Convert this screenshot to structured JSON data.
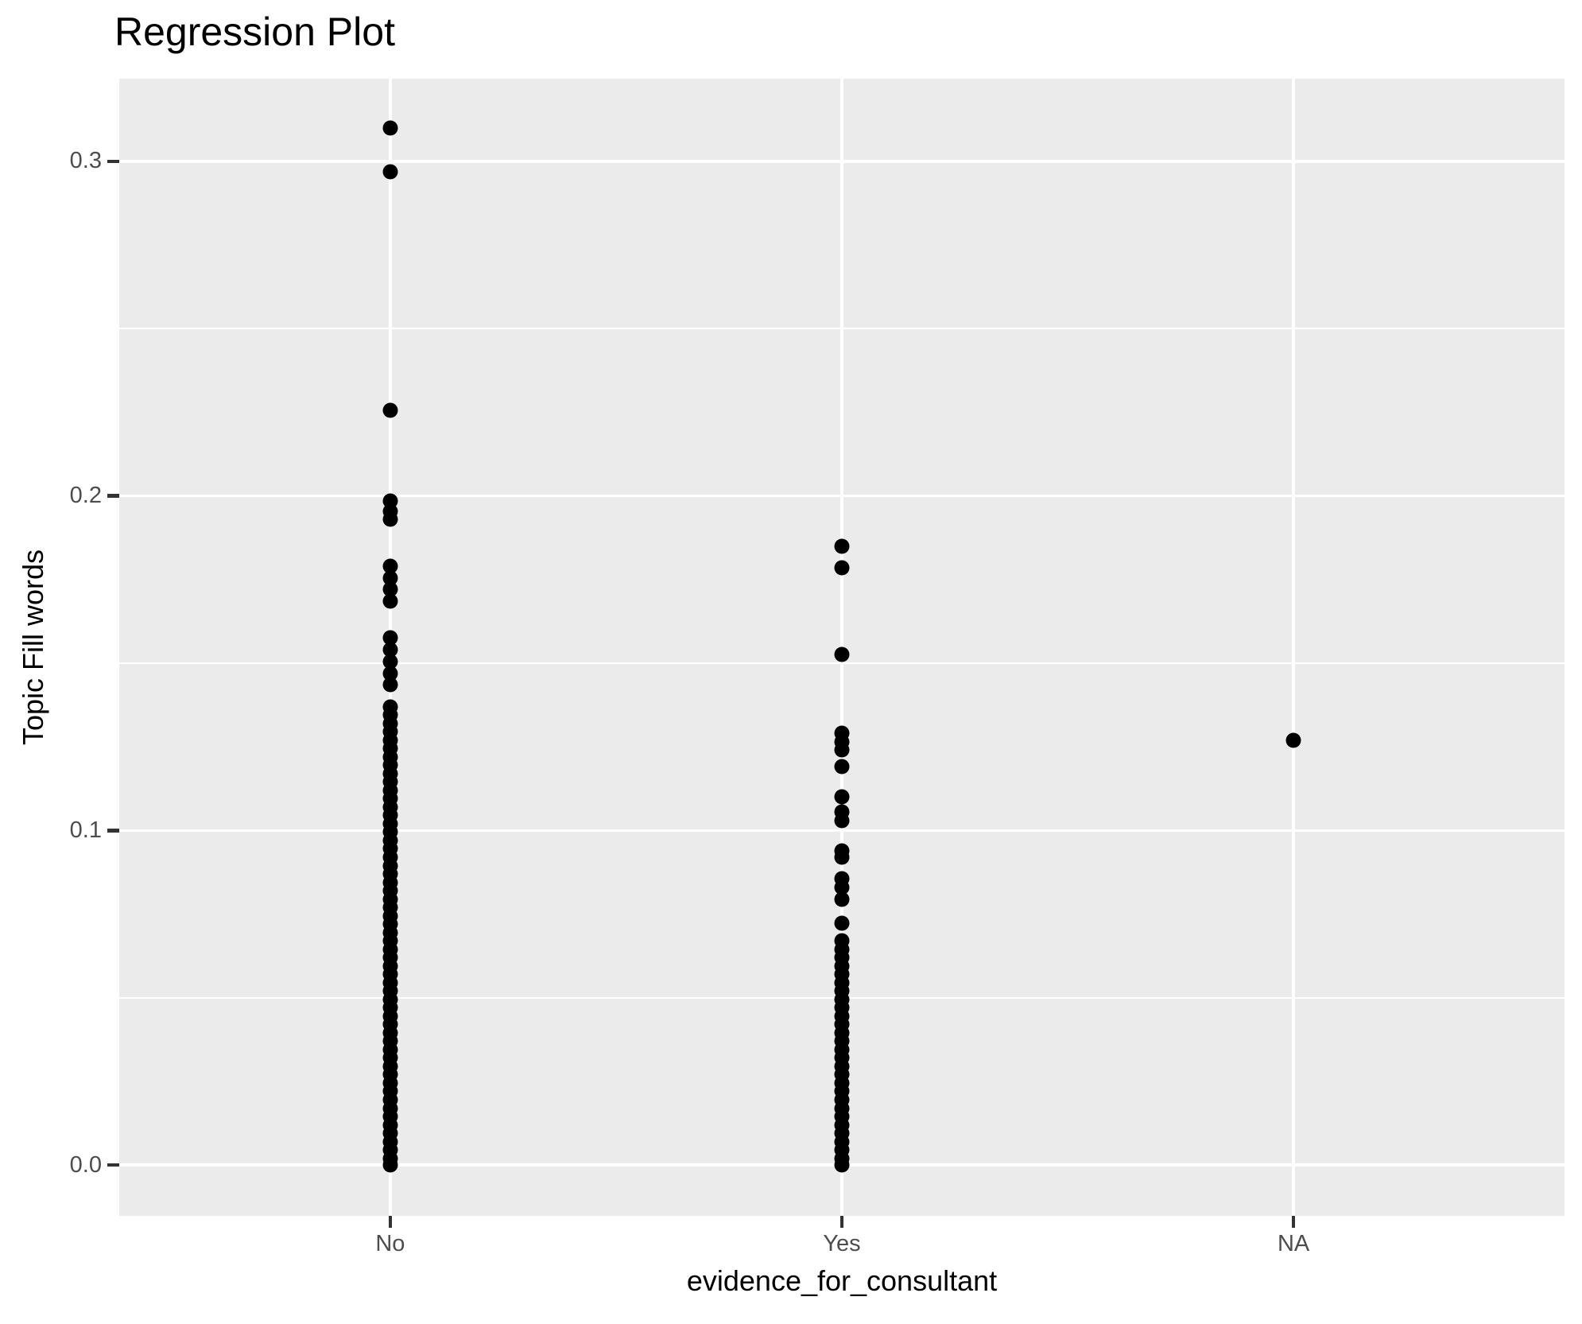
{
  "chart_data": {
    "type": "scatter",
    "title": "Regression Plot",
    "xlabel": "evidence_for_consultant",
    "ylabel": "Topic Fill words",
    "categories": [
      "No",
      "Yes",
      "NA"
    ],
    "y_ticks": [
      0.0,
      0.1,
      0.2,
      0.3
    ],
    "y_tick_labels": [
      "0.0",
      "0.1",
      "0.2",
      "0.3"
    ],
    "y_minor_ticks": [
      0.05,
      0.15,
      0.25
    ],
    "ylim": [
      -0.0152,
      0.3247
    ],
    "grid": "white major+minor horizontal and major vertical lines on grey panel",
    "legend_position": "none",
    "point_color": "#000000",
    "panel_background": "#EBEBEB",
    "gridline_color": "#FFFFFF",
    "tick_label_color": "#4D4D4D",
    "tick_mark_color": "#333333",
    "series": [
      {
        "name": "No",
        "values": [
          0.31,
          0.297,
          0.2255,
          0.1985,
          0.1955,
          0.193,
          0.179,
          0.1755,
          0.172,
          0.1685,
          0.1575,
          0.154,
          0.1505,
          0.147,
          0.1435,
          0.137,
          0.1345,
          0.132,
          0.1295,
          0.127,
          0.1245,
          0.122,
          0.1195,
          0.117,
          0.1145,
          0.112,
          0.1095,
          0.107,
          0.1045,
          0.102,
          0.0995,
          0.097,
          0.0945,
          0.092,
          0.0895,
          0.087,
          0.0845,
          0.082,
          0.0795,
          0.077,
          0.0745,
          0.072,
          0.0695,
          0.067,
          0.0645,
          0.062,
          0.0595,
          0.057,
          0.0545,
          0.052,
          0.0495,
          0.047,
          0.0445,
          0.042,
          0.0395,
          0.037,
          0.0345,
          0.032,
          0.0295,
          0.027,
          0.0245,
          0.022,
          0.0195,
          0.017,
          0.0145,
          0.012,
          0.0095,
          0.007,
          0.0045,
          0.002,
          0.0
        ]
      },
      {
        "name": "Yes",
        "values": [
          0.185,
          0.1785,
          0.1525,
          0.129,
          0.1265,
          0.124,
          0.119,
          0.11,
          0.1055,
          0.103,
          0.094,
          0.092,
          0.0855,
          0.083,
          0.0795,
          0.0723,
          0.067,
          0.0645,
          0.062,
          0.0595,
          0.057,
          0.0545,
          0.052,
          0.0495,
          0.047,
          0.0445,
          0.042,
          0.0395,
          0.037,
          0.0345,
          0.032,
          0.0295,
          0.027,
          0.0245,
          0.022,
          0.0195,
          0.017,
          0.0145,
          0.012,
          0.0095,
          0.007,
          0.0045,
          0.002,
          0.0
        ]
      },
      {
        "name": "NA",
        "values": [
          0.127
        ]
      }
    ]
  }
}
